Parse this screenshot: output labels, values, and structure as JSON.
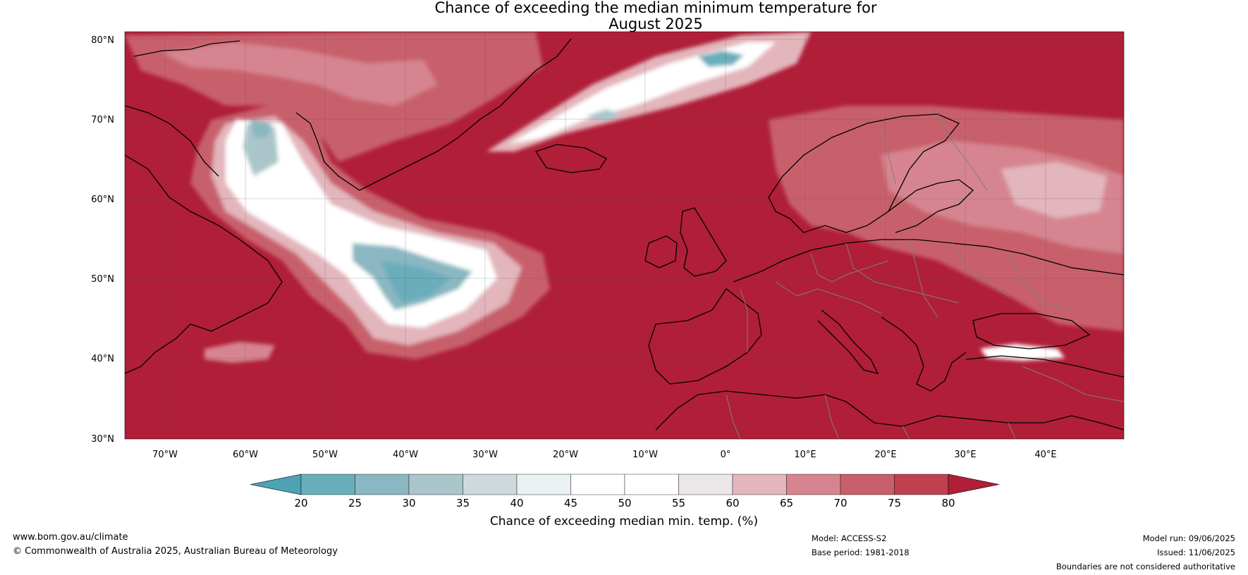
{
  "title_line1": "Chance of exceeding the median minimum temperature for",
  "title_line2": "August 2025",
  "map": {
    "lat_labels": [
      "80°N",
      "70°N",
      "60°N",
      "50°N",
      "40°N",
      "30°N"
    ],
    "lon_labels": [
      "70°W",
      "60°W",
      "50°W",
      "40°W",
      "30°W",
      "20°W",
      "10°W",
      "0°",
      "10°E",
      "20°E",
      "30°E",
      "40°E"
    ],
    "colors": {
      "background_high": "#b01e38",
      "land_border": "#000000",
      "country_border": "#7f7f7f"
    }
  },
  "colorbar": {
    "label": "Chance of exceeding median min. temp. (%)",
    "ticks": [
      "20",
      "25",
      "30",
      "35",
      "40",
      "45",
      "50",
      "55",
      "60",
      "65",
      "70",
      "75",
      "80"
    ],
    "colors": [
      "#4da3b4",
      "#6aadbb",
      "#8ab7c1",
      "#abc6cb",
      "#cdd9dc",
      "#e9f1f2",
      "#ffffff",
      "#ffffff",
      "#ebe7e8",
      "#e3b5bc",
      "#d68590",
      "#c8606c",
      "#bf404f",
      "#b01e38"
    ]
  },
  "footer": {
    "website": "www.bom.gov.au/climate",
    "copyright": "© Commonwealth of Australia 2025, Australian Bureau of Meteorology",
    "model": "Model: ACCESS-S2",
    "base_period": "Base period: 1981-2018",
    "model_run": "Model run: 09/06/2025",
    "issued": "Issued: 11/06/2025",
    "disclaimer": "Boundaries are not considered authoritative"
  }
}
